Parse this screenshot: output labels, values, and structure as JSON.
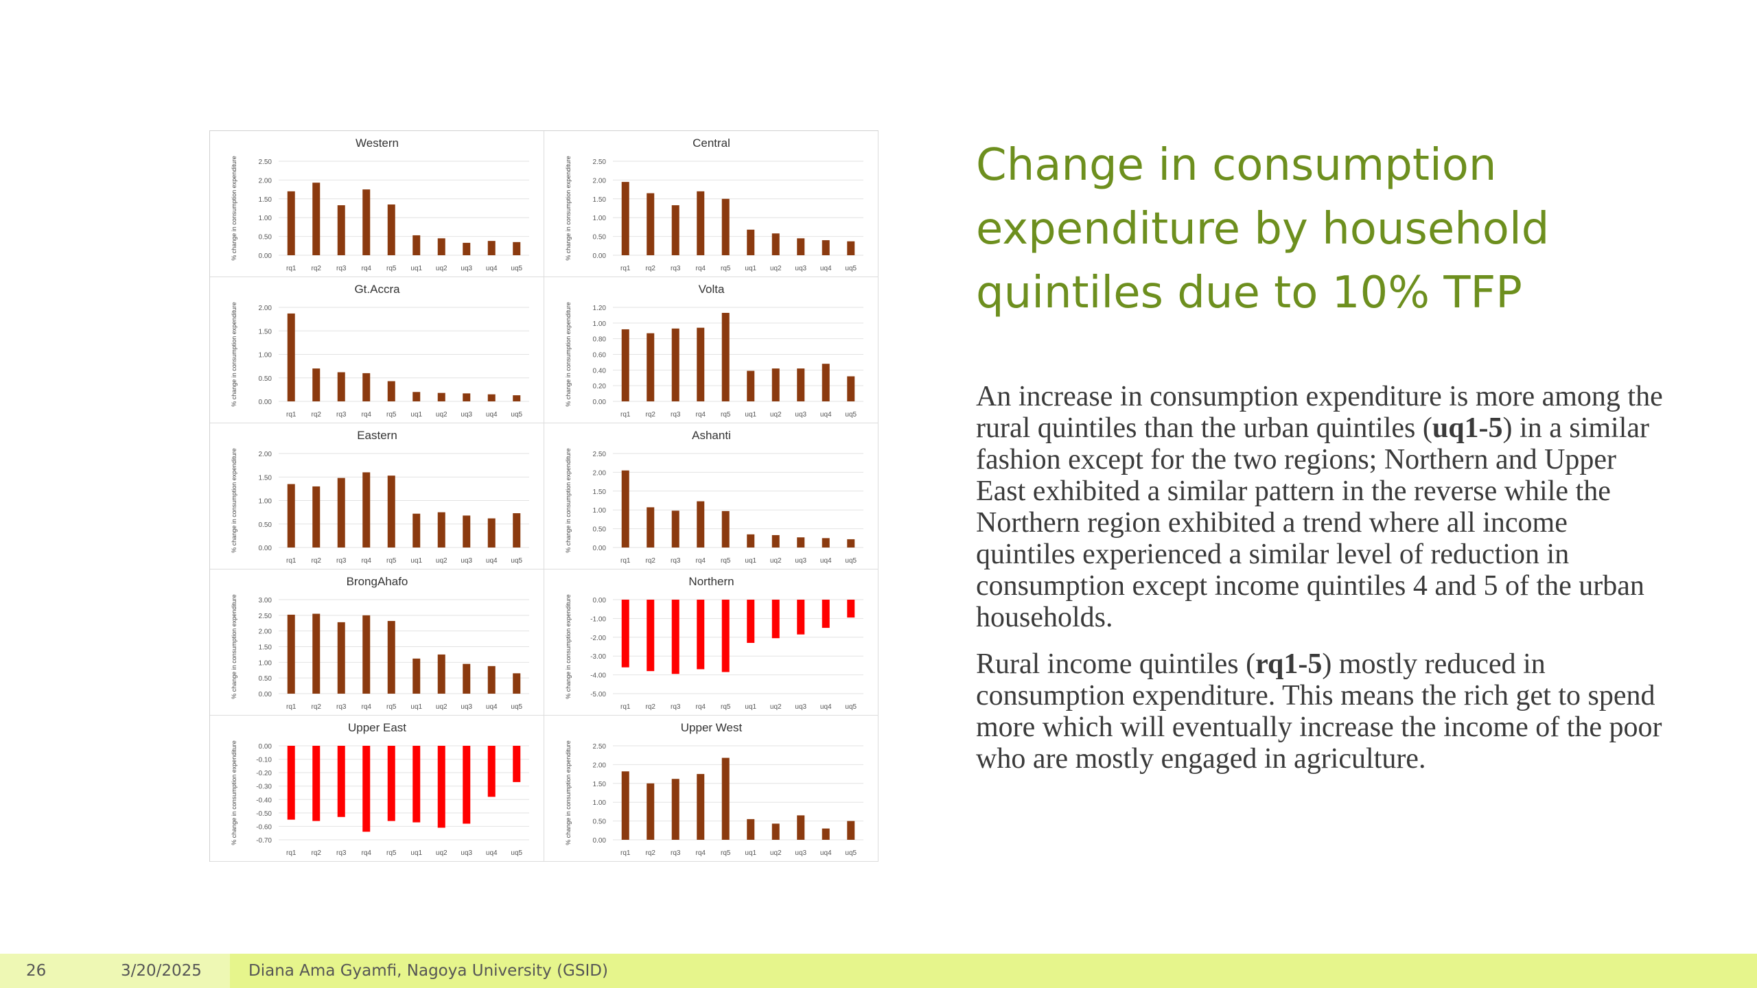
{
  "slide": {
    "title": "Change in consumption expenditure by household quintiles due to 10% TFP",
    "paragraphs": [
      [
        {
          "t": "An increase in consumption expenditure is more among the rural quintiles than the urban quintiles ("
        },
        {
          "t": "uq1-5",
          "b": true
        },
        {
          "t": ") in a similar fashion except for the two regions; Northern and Upper East exhibited a similar pattern in the reverse while the Northern region exhibited a trend where all income quintiles experienced a similar level of reduction in consumption except income quintiles 4 and 5 of the urban households."
        }
      ],
      [
        {
          "t": "Rural income quintiles ("
        },
        {
          "t": "rq1-5",
          "b": true
        },
        {
          "t": ") mostly reduced in consumption expenditure. This means the rich get to spend more which will eventually increase the income of the poor who are mostly engaged in agriculture."
        }
      ]
    ]
  },
  "footer": {
    "page_number": "26",
    "date": "3/20/2025",
    "author": "Diana Ama Gyamfi, Nagoya University (GSID)"
  },
  "colors": {
    "positive_bar": "#8b3a0f",
    "negative_bar": "#ff0000",
    "title": "#6d8f1e",
    "footer_bg": "#e6f58c"
  },
  "chart_data": [
    {
      "type": "bar",
      "title": "Western",
      "ylabel": "% change in consumption expenditure",
      "categories": [
        "rq1",
        "rq2",
        "rq3",
        "rq4",
        "rq5",
        "uq1",
        "uq2",
        "uq3",
        "uq4",
        "uq5"
      ],
      "values": [
        1.7,
        1.93,
        1.33,
        1.75,
        1.35,
        0.53,
        0.45,
        0.33,
        0.38,
        0.35
      ],
      "yticks": [
        "2.50",
        "2.00",
        "1.50",
        "1.00",
        "0.50",
        "0.00"
      ],
      "ylim": [
        0,
        2.5
      ]
    },
    {
      "type": "bar",
      "title": "Central",
      "ylabel": "% change in consumption expenditure",
      "categories": [
        "rq1",
        "rq2",
        "rq3",
        "rq4",
        "rq5",
        "uq1",
        "uq2",
        "uq3",
        "uq4",
        "uq5"
      ],
      "values": [
        1.95,
        1.65,
        1.33,
        1.7,
        1.5,
        0.68,
        0.58,
        0.45,
        0.4,
        0.37
      ],
      "yticks": [
        "2.50",
        "2.00",
        "1.50",
        "1.00",
        "0.50",
        "0.00"
      ],
      "ylim": [
        0,
        2.5
      ]
    },
    {
      "type": "bar",
      "title": "Gt.Accra",
      "ylabel": "% change in consumption expenditure",
      "categories": [
        "rq1",
        "rq2",
        "rq3",
        "rq4",
        "rq5",
        "uq1",
        "uq2",
        "uq3",
        "uq4",
        "uq5"
      ],
      "values": [
        1.87,
        0.7,
        0.62,
        0.6,
        0.43,
        0.2,
        0.18,
        0.17,
        0.15,
        0.13
      ],
      "yticks": [
        "2.00",
        "1.50",
        "1.00",
        "0.50",
        "0.00"
      ],
      "ylim": [
        0,
        2.0
      ]
    },
    {
      "type": "bar",
      "title": "Volta",
      "ylabel": "% change in consumption expenditure",
      "categories": [
        "rq1",
        "rq2",
        "rq3",
        "rq4",
        "rq5",
        "uq1",
        "uq2",
        "uq3",
        "uq4",
        "uq5"
      ],
      "values": [
        0.92,
        0.87,
        0.93,
        0.94,
        1.13,
        0.39,
        0.42,
        0.42,
        0.48,
        0.32
      ],
      "yticks": [
        "1.20",
        "1.00",
        "0.80",
        "0.60",
        "0.40",
        "0.20",
        "0.00"
      ],
      "ylim": [
        0,
        1.2
      ]
    },
    {
      "type": "bar",
      "title": "Eastern",
      "ylabel": "% change in consumption expenditure",
      "categories": [
        "rq1",
        "rq2",
        "rq3",
        "rq4",
        "rq5",
        "uq1",
        "uq2",
        "uq3",
        "uq4",
        "uq5"
      ],
      "values": [
        1.35,
        1.3,
        1.48,
        1.6,
        1.53,
        0.72,
        0.75,
        0.68,
        0.62,
        0.73
      ],
      "yticks": [
        "2.00",
        "1.50",
        "1.00",
        "0.50",
        "0.00"
      ],
      "ylim": [
        0,
        2.0
      ]
    },
    {
      "type": "bar",
      "title": "Ashanti",
      "ylabel": "% change in consumption expenditure",
      "categories": [
        "rq1",
        "rq2",
        "rq3",
        "rq4",
        "rq5",
        "uq1",
        "uq2",
        "uq3",
        "uq4",
        "uq5"
      ],
      "values": [
        2.05,
        1.07,
        0.98,
        1.23,
        0.97,
        0.35,
        0.33,
        0.27,
        0.25,
        0.22
      ],
      "yticks": [
        "2.50",
        "2.00",
        "1.50",
        "1.00",
        "0.50",
        "0.00"
      ],
      "ylim": [
        0,
        2.5
      ]
    },
    {
      "type": "bar",
      "title": "BrongAhafo",
      "ylabel": "% change in consumption expenditure",
      "categories": [
        "rq1",
        "rq2",
        "rq3",
        "rq4",
        "rq5",
        "uq1",
        "uq2",
        "uq3",
        "uq4",
        "uq5"
      ],
      "values": [
        2.52,
        2.55,
        2.28,
        2.5,
        2.32,
        1.12,
        1.25,
        0.95,
        0.88,
        0.65
      ],
      "yticks": [
        "3.00",
        "2.50",
        "2.00",
        "1.50",
        "1.00",
        "0.50",
        "0.00"
      ],
      "ylim": [
        0,
        3.0
      ]
    },
    {
      "type": "bar",
      "title": "Northern",
      "ylabel": "% change in consumption expenditure",
      "categories": [
        "rq1",
        "rq2",
        "rq3",
        "rq4",
        "rq5",
        "uq1",
        "uq2",
        "uq3",
        "uq4",
        "uq5"
      ],
      "values": [
        -3.6,
        -3.8,
        -3.95,
        -3.7,
        -3.85,
        -2.3,
        -2.05,
        -1.85,
        -1.5,
        -0.95
      ],
      "yticks": [
        "0.00",
        "-1.00",
        "-2.00",
        "-3.00",
        "-4.00",
        "-5.00"
      ],
      "ylim": [
        -5,
        0
      ]
    },
    {
      "type": "bar",
      "title": "Upper East",
      "ylabel": "% change in consumption expenditure",
      "categories": [
        "rq1",
        "rq2",
        "rq3",
        "rq4",
        "rq5",
        "uq1",
        "uq2",
        "uq3",
        "uq4",
        "uq5"
      ],
      "values": [
        -0.55,
        -0.56,
        -0.53,
        -0.64,
        -0.56,
        -0.57,
        -0.61,
        -0.58,
        -0.38,
        -0.27
      ],
      "yticks": [
        "0.00",
        "-0.10",
        "-0.20",
        "-0.30",
        "-0.40",
        "-0.50",
        "-0.60",
        "-0.70"
      ],
      "ylim": [
        -0.7,
        0
      ]
    },
    {
      "type": "bar",
      "title": "Upper West",
      "ylabel": "% change in consumption expenditure",
      "categories": [
        "rq1",
        "rq2",
        "rq3",
        "rq4",
        "rq5",
        "uq1",
        "uq2",
        "uq3",
        "uq4",
        "uq5"
      ],
      "values": [
        1.82,
        1.5,
        1.62,
        1.75,
        2.18,
        0.55,
        0.43,
        0.65,
        0.3,
        0.5
      ],
      "yticks": [
        "2.50",
        "2.00",
        "1.50",
        "1.00",
        "0.50",
        "0.00"
      ],
      "ylim": [
        0,
        2.5
      ]
    }
  ]
}
